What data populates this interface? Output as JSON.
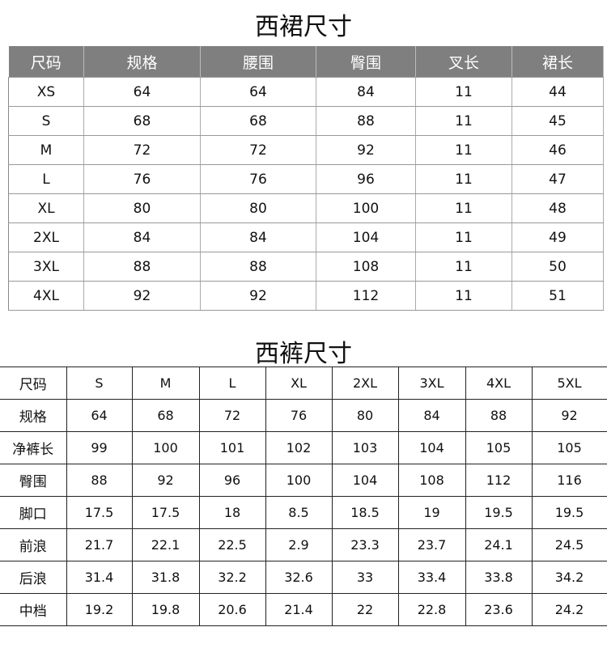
{
  "skirt": {
    "title": "西裙尺寸",
    "header_color": "#7f7f7f",
    "headers": [
      "尺码",
      "规格",
      "腰围",
      "臀围",
      "叉长",
      "裙长"
    ],
    "rows": [
      [
        "XS",
        "64",
        "64",
        "84",
        "11",
        "44"
      ],
      [
        "S",
        "68",
        "68",
        "88",
        "11",
        "45"
      ],
      [
        "M",
        "72",
        "72",
        "92",
        "11",
        "46"
      ],
      [
        "L",
        "76",
        "76",
        "96",
        "11",
        "47"
      ],
      [
        "XL",
        "80",
        "80",
        "100",
        "11",
        "48"
      ],
      [
        "2XL",
        "84",
        "84",
        "104",
        "11",
        "49"
      ],
      [
        "3XL",
        "88",
        "88",
        "108",
        "11",
        "50"
      ],
      [
        "4XL",
        "92",
        "92",
        "112",
        "11",
        "51"
      ]
    ]
  },
  "pants": {
    "title": "西裤尺寸",
    "rows": [
      [
        "尺码",
        "S",
        "M",
        "L",
        "XL",
        "2XL",
        "3XL",
        "4XL",
        "5XL"
      ],
      [
        "规格",
        "64",
        "68",
        "72",
        "76",
        "80",
        "84",
        "88",
        "92"
      ],
      [
        "净裤长",
        "99",
        "100",
        "101",
        "102",
        "103",
        "104",
        "105",
        "105"
      ],
      [
        "臀围",
        "88",
        "92",
        "96",
        "100",
        "104",
        "108",
        "112",
        "116"
      ],
      [
        "脚口",
        "17.5",
        "17.5",
        "18",
        "8.5",
        "18.5",
        "19",
        "19.5",
        "19.5"
      ],
      [
        "前浪",
        "21.7",
        "22.1",
        "22.5",
        "2.9",
        "23.3",
        "23.7",
        "24.1",
        "24.5"
      ],
      [
        "后浪",
        "31.4",
        "31.8",
        "32.2",
        "32.6",
        "33",
        "33.4",
        "33.8",
        "34.2"
      ],
      [
        "中档",
        "19.2",
        "19.8",
        "20.6",
        "21.4",
        "22",
        "22.8",
        "23.6",
        "24.2"
      ]
    ]
  }
}
